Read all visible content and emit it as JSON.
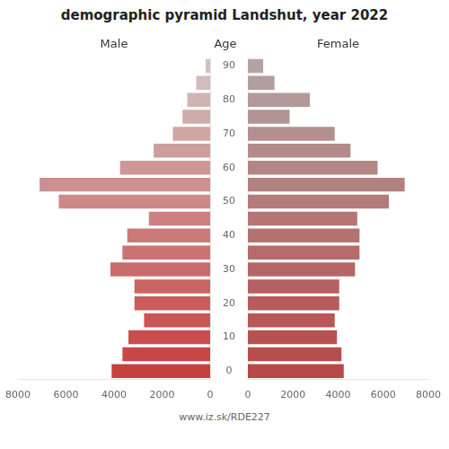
{
  "chart_data": {
    "type": "bar",
    "orientation": "horizontal",
    "title": "demographic pyramid Landshut, year 2022",
    "ylabel": "Age",
    "footer": "www.iz.sk/RDE227",
    "categories": [
      "0",
      null,
      "10",
      null,
      "20",
      null,
      "30",
      null,
      "40",
      null,
      "50",
      null,
      "60",
      null,
      "70",
      null,
      "80",
      null,
      "90"
    ],
    "series": [
      {
        "name": "Male",
        "colors": [
          "#c74040",
          "#c74747",
          "#c84e4e",
          "#c95555",
          "#c95d5d",
          "#ca6464",
          "#ca6b6b",
          "#cb7272",
          "#cb7a7a",
          "#cc8181",
          "#cd8888",
          "#cd8f8f",
          "#ce9696",
          "#ce9e9e",
          "#cfa5a5",
          "#cfacac",
          "#d0b3b3",
          "#d1bbbb",
          "#d1c2c2"
        ],
        "values": [
          4100,
          3650,
          3400,
          2750,
          3150,
          3150,
          4150,
          3650,
          3450,
          2550,
          6300,
          7100,
          3750,
          2350,
          1550,
          1150,
          950,
          580,
          190
        ]
      },
      {
        "name": "Female",
        "colors": [
          "#b84747",
          "#b74d4d",
          "#b75252",
          "#b75757",
          "#b65c5c",
          "#b66161",
          "#b66666",
          "#b66b6b",
          "#b57070",
          "#b57575",
          "#b57a7a",
          "#b48080",
          "#b48585",
          "#b48a8a",
          "#b48f8f",
          "#b39494",
          "#b39999",
          "#b39e9e",
          "#b3a3a3"
        ],
        "values": [
          4250,
          4150,
          3950,
          3850,
          4050,
          4050,
          4750,
          4950,
          4950,
          4850,
          6250,
          6950,
          5750,
          4550,
          3850,
          1850,
          2750,
          1180,
          680
        ]
      }
    ],
    "xlim": [
      0,
      8000
    ],
    "xticks": [
      0,
      2000,
      4000,
      6000,
      8000
    ],
    "grid": false
  }
}
